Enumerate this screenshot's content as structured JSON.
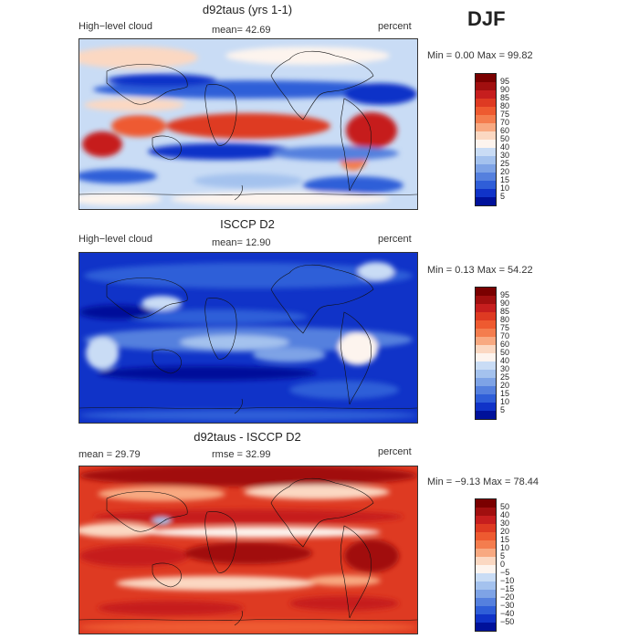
{
  "season": "DJF",
  "panels": [
    {
      "title": "d92taus (yrs 1-1)",
      "left_label": "High−level cloud",
      "center_label": "mean=   42.69",
      "right_label": "percent",
      "minmax": "Min =    0.00 Max =   99.82",
      "scale": "levels",
      "map_palette": "model"
    },
    {
      "title": "ISCCP D2",
      "left_label": "High−level cloud",
      "center_label": "mean=   12.90",
      "right_label": "percent",
      "minmax": "Min =    0.13 Max =   54.22",
      "scale": "levels",
      "map_palette": "obs"
    },
    {
      "title": "d92taus - ISCCP D2",
      "left_label": "mean =   29.79",
      "center_label": "rmse =   32.99",
      "right_label": "percent",
      "minmax": "Min =  −9.13 Max =   78.44",
      "scale": "diff",
      "map_palette": "diff"
    }
  ],
  "colorbars": {
    "levels": {
      "ticks": [
        "95",
        "90",
        "85",
        "80",
        "75",
        "70",
        "60",
        "50",
        "40",
        "30",
        "25",
        "20",
        "15",
        "10",
        "5"
      ],
      "colors": [
        "#7a0000",
        "#a10f0f",
        "#c61e1e",
        "#de3a22",
        "#ee5a30",
        "#f47d4e",
        "#f8a981",
        "#fbd8c2",
        "#fdf4ee",
        "#c9dcf5",
        "#a4c2ee",
        "#7ea3e6",
        "#5580de",
        "#2f5ed8",
        "#1033c8",
        "#00119a"
      ]
    },
    "diff": {
      "ticks": [
        "50",
        "40",
        "30",
        "20",
        "15",
        "10",
        "5",
        "0",
        "−5",
        "−10",
        "−15",
        "−20",
        "−30",
        "−40",
        "−50"
      ],
      "colors": [
        "#7a0000",
        "#a10f0f",
        "#c61e1e",
        "#de3a22",
        "#ee5a30",
        "#f47d4e",
        "#f8a981",
        "#fbd8c2",
        "#fdf4ee",
        "#c9dcf5",
        "#a4c2ee",
        "#7ea3e6",
        "#5580de",
        "#2f5ed8",
        "#1033c8",
        "#00119a"
      ]
    }
  }
}
